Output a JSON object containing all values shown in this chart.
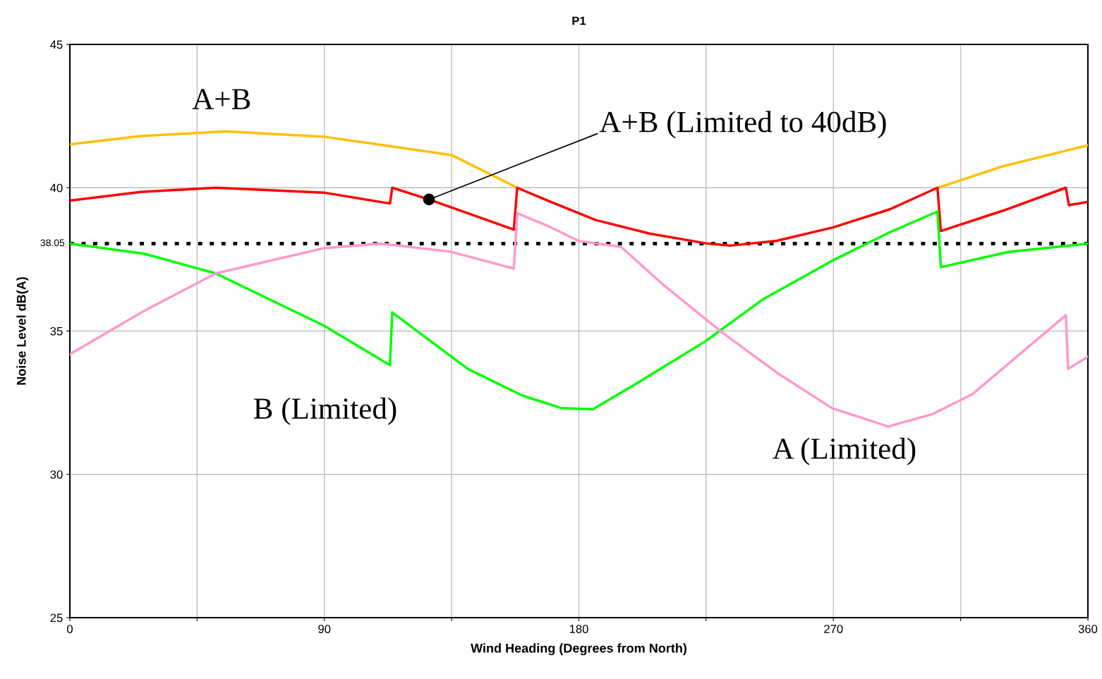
{
  "chart_data": {
    "type": "line",
    "title": "P1",
    "xlabel": "Wind Heading (Degrees from North)",
    "ylabel": "Noise Level dB(A)",
    "xlim": [
      0,
      360
    ],
    "xticks": [
      0,
      {
        "value": 45,
        "label": null
      },
      90,
      {
        "value": 135,
        "label": null
      },
      180,
      {
        "value": 225,
        "label": null
      },
      270,
      {
        "value": 315,
        "label": null
      },
      360
    ],
    "ylim": [
      25,
      45
    ],
    "yticks": [
      25,
      30,
      35,
      40,
      45
    ],
    "grid": true,
    "legend": false,
    "marker": "none",
    "line_style": "solid",
    "series": [
      {
        "name": "A+B",
        "color": "#ffc000",
        "x": [
          0,
          25,
          55,
          90,
          135,
          158.2,
          null,
          307,
          330,
          360
        ],
        "values": [
          41.51,
          41.8,
          41.97,
          41.78,
          41.14,
          40.0,
          null,
          40.0,
          40.75,
          41.48
        ]
      },
      {
        "color": "#ff0000",
        "x": [
          0,
          25,
          51.6,
          89.8,
          113.2,
          114,
          127,
          157,
          158.2,
          169.2,
          186,
          205,
          225,
          233.5,
          250,
          270,
          290,
          306.8,
          308,
          330,
          352.2,
          353.3,
          360
        ],
        "values": [
          39.55,
          39.85,
          40.0,
          39.83,
          39.45,
          40.0,
          39.59,
          38.54,
          40.0,
          39.54,
          38.87,
          38.4,
          38.06,
          37.98,
          38.15,
          38.62,
          39.25,
          40.0,
          38.49,
          39.2,
          40.0,
          39.39,
          39.51
        ]
      },
      {
        "name": "B (Limited)",
        "color": "#00ff00",
        "x": [
          0,
          26.2,
          51.6,
          89.8,
          113.2,
          114,
          140.7,
          160,
          173.9,
          184.9,
          200,
          224.7,
          245,
          269.5,
          290,
          306.8,
          308,
          332,
          360
        ],
        "values": [
          38.05,
          37.7,
          37.01,
          35.19,
          33.81,
          35.65,
          33.68,
          32.75,
          32.31,
          32.27,
          33.15,
          34.64,
          36.1,
          37.45,
          38.45,
          39.17,
          37.23,
          37.76,
          38.05
        ]
      },
      {
        "name": "A (Limited)",
        "color": "#ff99cc",
        "x": [
          0,
          26.2,
          51.6,
          89.8,
          110,
          134.5,
          157,
          158.2,
          169.9,
          180,
          194.9,
          210,
          230.8,
          250,
          269.5,
          289.4,
          305,
          319.2,
          352.2,
          353,
          360
        ],
        "values": [
          34.19,
          35.7,
          37.01,
          37.89,
          38.05,
          37.77,
          37.18,
          39.11,
          38.63,
          38.14,
          37.94,
          36.6,
          34.94,
          33.55,
          32.31,
          31.67,
          32.1,
          32.8,
          35.55,
          33.68,
          34.1
        ]
      }
    ],
    "ref_lines": [
      {
        "axis": "y",
        "value": 38.05,
        "label": "38.05",
        "color": "#000000",
        "line_style": "dotted"
      }
    ],
    "annotations": [
      {
        "text": "A+B (Limited to 40dB)",
        "x": 127,
        "y": 39.59
      }
    ]
  }
}
